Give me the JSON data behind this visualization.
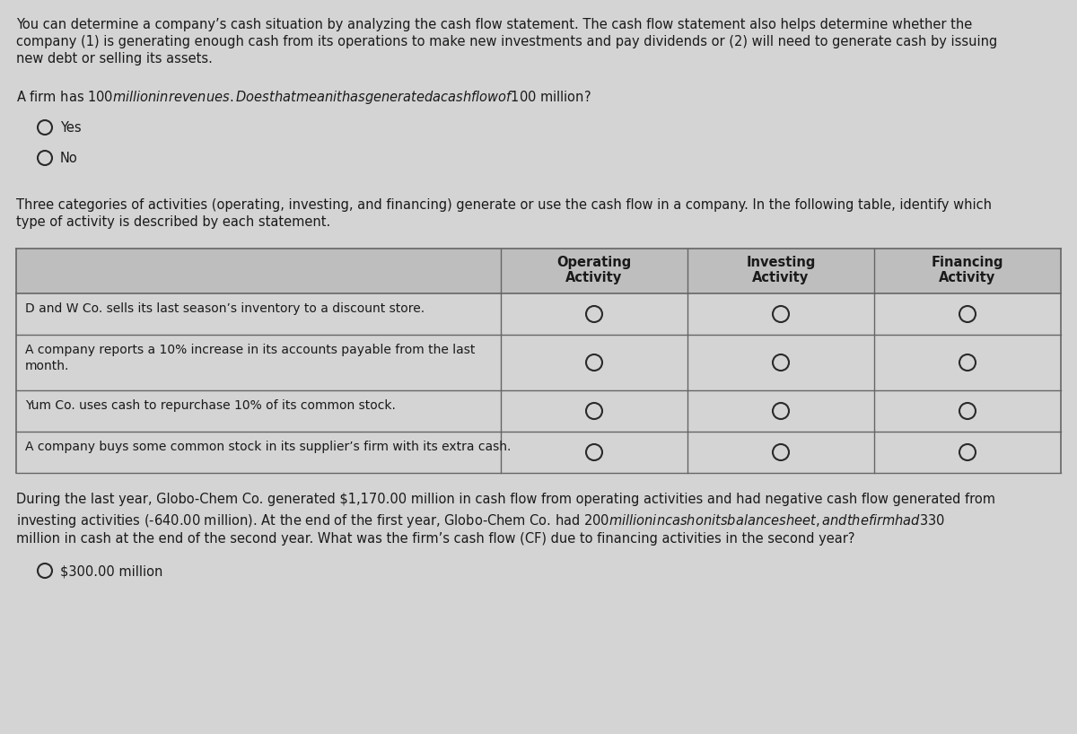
{
  "bg_color": "#d4d4d4",
  "text_color": "#1a1a1a",
  "para1_lines": [
    "You can determine a company’s cash situation by analyzing the cash flow statement. The cash flow statement also helps determine whether the",
    "company (1) is generating enough cash from its operations to make new investments and pay dividends or (2) will need to generate cash by issuing",
    "new debt or selling its assets."
  ],
  "para2": "A firm has $100 million in revenues. Does that mean it has generated a cash flow of $100 million?",
  "yes_label": "Yes",
  "no_label": "No",
  "para3_lines": [
    "Three categories of activities (operating, investing, and financing) generate or use the cash flow in a company. In the following table, identify which",
    "type of activity is described by each statement."
  ],
  "table_headers": [
    "Operating\nActivity",
    "Investing\nActivity",
    "Financing\nActivity"
  ],
  "table_rows": [
    [
      "D and W Co. sells its last season’s inventory to a discount store.",
      ""
    ],
    [
      "A company reports a 10% increase in its accounts payable from the last",
      "month."
    ],
    [
      "Yum Co. uses cash to repurchase 10% of its common stock.",
      ""
    ],
    [
      "A company buys some common stock in its supplier’s firm with its extra cash.",
      ""
    ]
  ],
  "para4_lines": [
    "During the last year, Globo-Chem Co. generated $1,170.00 million in cash flow from operating activities and had negative cash flow generated from",
    "investing activities (-640.00 million). At the end of the first year, Globo-Chem Co. had $200 million in cash on its balance sheet, and the firm had $330",
    "million in cash at the end of the second year. What was the firm’s cash flow (CF) due to financing activities in the second year?"
  ],
  "answer_label": "$300.00 million",
  "circle_color": "#2a2a2a",
  "table_border_color": "#666666",
  "table_bg": "#d4d4d4",
  "header_bg": "#bebebe"
}
